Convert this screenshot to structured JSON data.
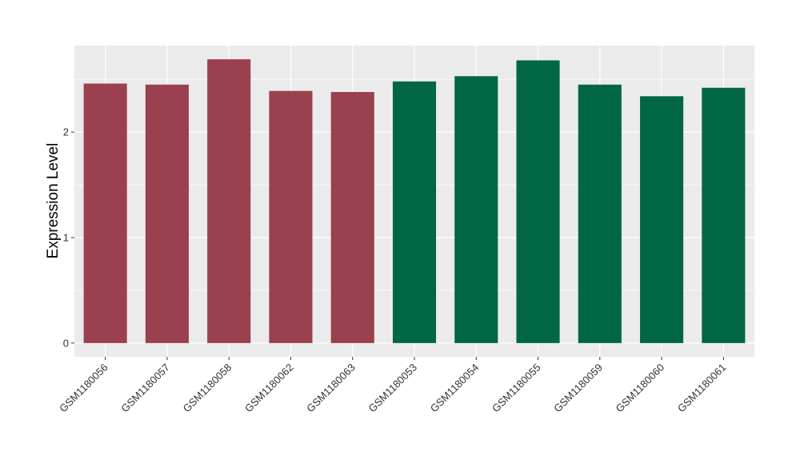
{
  "chart_data": {
    "type": "bar",
    "ylabel": "Expression Level",
    "xlabel": "",
    "categories": [
      "GSM1180056",
      "GSM1180057",
      "GSM1180058",
      "GSM1180062",
      "GSM1180063",
      "GSM1180053",
      "GSM1180054",
      "GSM1180055",
      "GSM1180059",
      "GSM1180060",
      "GSM1180061"
    ],
    "values": [
      2.46,
      2.45,
      2.69,
      2.39,
      2.38,
      2.48,
      2.53,
      2.68,
      2.45,
      2.34,
      2.42
    ],
    "bar_colors": [
      "#9a404e",
      "#9a404e",
      "#9a404e",
      "#9a404e",
      "#9a404e",
      "#006644",
      "#006644",
      "#006644",
      "#006644",
      "#006644",
      "#006644"
    ],
    "y_ticks": [
      0,
      1,
      2
    ],
    "ylim": [
      -0.13,
      2.82
    ],
    "grid": true,
    "panel_background": "#ebebeb"
  }
}
